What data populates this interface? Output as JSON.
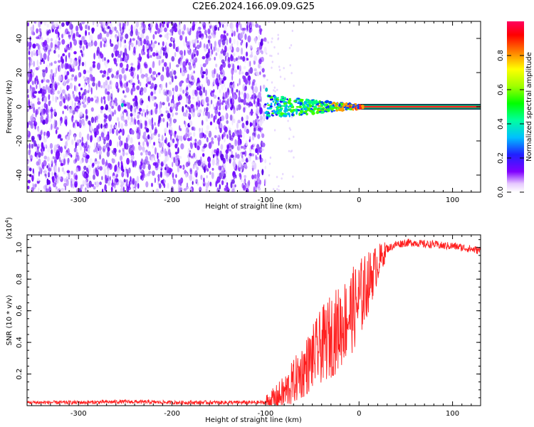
{
  "title": "C2E6.2024.166.09.09.G25",
  "colors": {
    "signal": "#ff2020",
    "wave_purple": "#6a00ff",
    "background": "#ffffff"
  },
  "chart_data": [
    {
      "type": "heatmap",
      "xlabel": "Height of straight line (km)",
      "ylabel": "Frequency (Hz)",
      "xlim": [
        -355,
        130
      ],
      "ylim": [
        -50,
        50
      ],
      "xticks": [
        -300,
        -200,
        -100,
        0,
        100
      ],
      "xtick_labels": [
        "-300",
        "-200",
        "-100",
        "0",
        "100"
      ],
      "yticks": [
        -40,
        -20,
        0,
        20,
        40
      ],
      "ytick_labels": [
        "-40",
        "-20",
        "0",
        "20",
        "40"
      ],
      "noise_region_x": [
        -355,
        -100
      ],
      "signal_line_y": 0,
      "signal_line_x": [
        -100,
        130
      ],
      "colorbar": {
        "label": "Normalized spectral amplitude",
        "range": [
          0,
          1
        ],
        "ticks": [
          0.0,
          0.2,
          0.4,
          0.6,
          0.8
        ],
        "tick_labels": [
          "0.0",
          "0.2",
          "0.4",
          "0.6",
          "0.8"
        ],
        "colormap": "rainbow (purple to red)"
      },
      "grid": false
    },
    {
      "type": "line",
      "xlabel": "Height of straight line (km)",
      "ylabel": "SNR (10 * v/v)",
      "multiplier": "(x10",
      "multiplier_exp": "4",
      "multiplier_close": ")",
      "xlim": [
        -355,
        130
      ],
      "ylim": [
        0,
        1.08
      ],
      "xticks": [
        -300,
        -200,
        -100,
        0,
        100
      ],
      "xtick_labels": [
        "-300",
        "-200",
        "-100",
        "0",
        "100"
      ],
      "yticks": [
        0.2,
        0.4,
        0.6,
        0.8,
        1.0
      ],
      "ytick_labels": [
        "0.2",
        "0.4",
        "0.6",
        "0.8",
        "1.0"
      ],
      "series": [
        {
          "color": "#ff2020",
          "x": [
            -355,
            -300,
            -250,
            -200,
            -150,
            -110,
            -100,
            -90,
            -80,
            -70,
            -60,
            -50,
            -40,
            -30,
            -20,
            -10,
            0,
            10,
            20,
            30,
            40,
            50,
            60,
            70,
            80,
            90,
            100,
            110,
            120,
            130
          ],
          "y": [
            0.02,
            0.02,
            0.025,
            0.02,
            0.02,
            0.02,
            0.02,
            0.04,
            0.08,
            0.15,
            0.22,
            0.3,
            0.38,
            0.44,
            0.5,
            0.58,
            0.66,
            0.78,
            0.9,
            0.99,
            1.02,
            1.03,
            1.03,
            1.02,
            1.02,
            1.01,
            1.01,
            1.0,
            0.99,
            0.98
          ]
        }
      ],
      "grid": false
    }
  ]
}
